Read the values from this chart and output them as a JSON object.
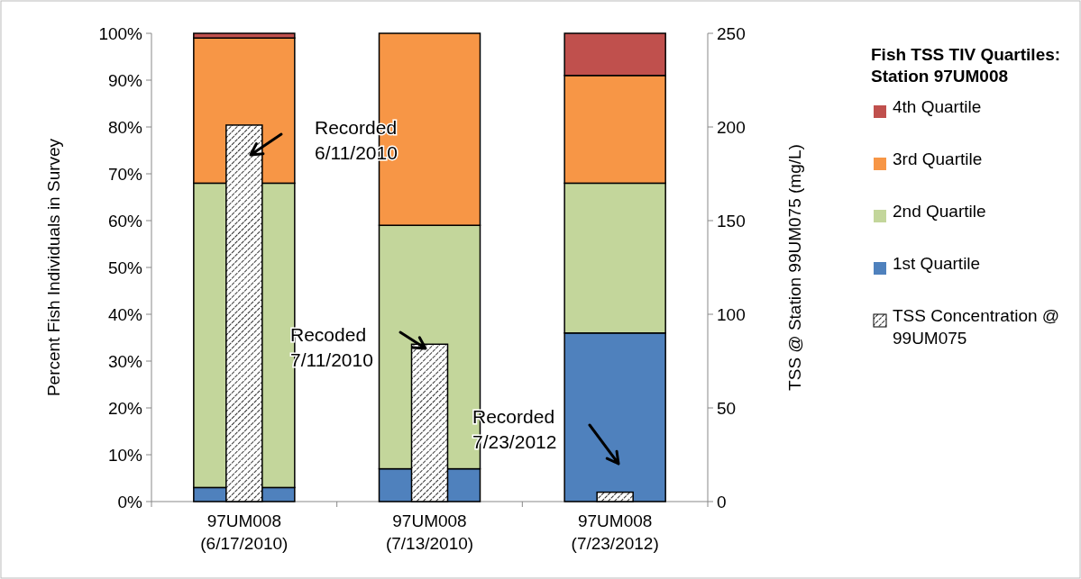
{
  "chart_data": {
    "type": "bar",
    "stacked": true,
    "categories": [
      "97UM008\n(6/17/2010)",
      "97UM008\n(7/13/2010)",
      "97UM008\n(7/23/2012)"
    ],
    "series": [
      {
        "name": "1st Quartile",
        "color": "#4f81bd",
        "values": [
          3,
          7,
          36
        ]
      },
      {
        "name": "2nd Quartile",
        "color": "#c3d69b",
        "values": [
          65,
          52,
          32
        ]
      },
      {
        "name": "3rd Quartile",
        "color": "#f79646",
        "values": [
          31,
          41,
          23
        ]
      },
      {
        "name": "4th Quartile",
        "color": "#c0504d",
        "values": [
          1,
          0,
          9
        ]
      },
      {
        "name": "TSS Concentration @ 99UM075",
        "color": "#000000",
        "values": [
          201,
          84,
          5
        ],
        "axis": "y2"
      }
    ],
    "ylabel": "Percent Fish Individuals in Survey",
    "y2label": "TSS @ Station 99UM075 (mg/L)",
    "legend_title": "Fish TSS TIV Quartiles: Station 97UM008",
    "ylim": [
      0,
      100
    ],
    "yticks": [
      {
        "value": 0,
        "label": "0%"
      },
      {
        "value": 10,
        "label": "10%"
      },
      {
        "value": 20,
        "label": "20%"
      },
      {
        "value": 30,
        "label": "30%"
      },
      {
        "value": 40,
        "label": "40%"
      },
      {
        "value": 50,
        "label": "50%"
      },
      {
        "value": 60,
        "label": "60%"
      },
      {
        "value": 70,
        "label": "70%"
      },
      {
        "value": 80,
        "label": "80%"
      },
      {
        "value": 90,
        "label": "90%"
      },
      {
        "value": 100,
        "label": "100%"
      }
    ],
    "y2lim": [
      0,
      250
    ],
    "y2ticks": [
      0,
      50,
      100,
      150,
      200,
      250
    ],
    "legend": "right",
    "annotations": [
      "Recorded\n6/11/2010",
      "Recoded\n7/11/2010",
      "Recorded\n7/23/2012"
    ]
  }
}
